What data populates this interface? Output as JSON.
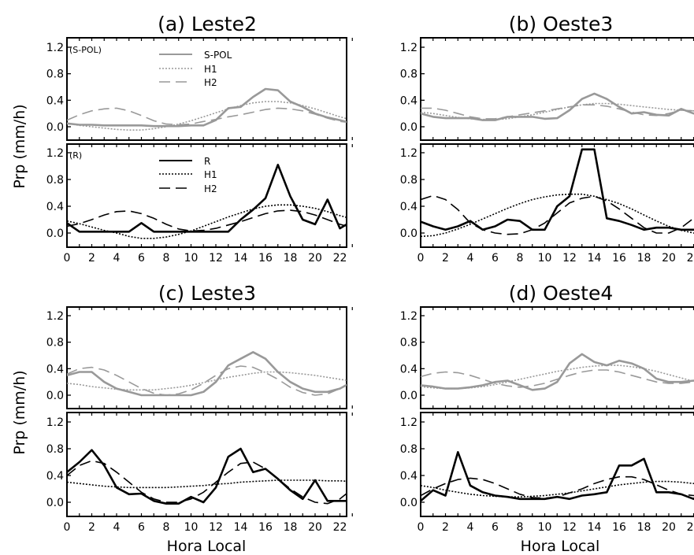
{
  "ylabel": "Prp (mm/h)",
  "xlabel": "Hora Local",
  "x_ticks": [
    "0",
    "2",
    "4",
    "6",
    "8",
    "10",
    "12",
    "14",
    "16",
    "18",
    "20",
    "22"
  ],
  "y_ticks": [
    "0.0",
    "0.4",
    "0.8",
    "1.2"
  ],
  "legends": {
    "top": {
      "tag": "(S-POL)",
      "items": [
        "S-POL",
        "H1",
        "H2"
      ]
    },
    "bottom": {
      "tag": "(R)",
      "items": [
        "R",
        "H1",
        "H2"
      ]
    }
  },
  "colors": {
    "spol": "#999999",
    "rain": "#000000"
  },
  "chart_data": [
    {
      "type": "line",
      "title": "(a) Leste2",
      "x": [
        0,
        1,
        2,
        3,
        4,
        5,
        6,
        7,
        8,
        9,
        10,
        11,
        12,
        13,
        14,
        15,
        16,
        17,
        18,
        19,
        20,
        21,
        22,
        23
      ],
      "ylim": [
        -0.1,
        1.2
      ],
      "top": {
        "series": [
          {
            "name": "S-POL",
            "values": [
              0.05,
              0.03,
              0.03,
              0.02,
              0.02,
              0.02,
              0.02,
              0.01,
              0.01,
              0.01,
              0.02,
              0.02,
              0.1,
              0.28,
              0.3,
              0.45,
              0.57,
              0.55,
              0.38,
              0.3,
              0.2,
              0.14,
              0.1,
              0.05
            ]
          },
          {
            "name": "H1",
            "values": [
              0.05,
              0.02,
              0.0,
              -0.02,
              -0.04,
              -0.05,
              -0.05,
              -0.03,
              0.0,
              0.04,
              0.09,
              0.15,
              0.21,
              0.27,
              0.32,
              0.36,
              0.38,
              0.38,
              0.36,
              0.32,
              0.27,
              0.21,
              0.15,
              0.1
            ]
          },
          {
            "name": "H2",
            "values": [
              0.1,
              0.18,
              0.24,
              0.27,
              0.28,
              0.24,
              0.17,
              0.09,
              0.04,
              0.03,
              0.04,
              0.08,
              0.11,
              0.15,
              0.18,
              0.22,
              0.26,
              0.28,
              0.27,
              0.24,
              0.19,
              0.13,
              0.08,
              0.06
            ]
          }
        ]
      },
      "bottom": {
        "series": [
          {
            "name": "R",
            "values": [
              0.15,
              0.02,
              0.02,
              0.02,
              0.02,
              0.02,
              0.15,
              0.02,
              0.02,
              0.02,
              0.02,
              0.02,
              0.02,
              0.02,
              0.2,
              0.35,
              0.52,
              1.02,
              0.55,
              0.2,
              0.13,
              0.5,
              0.07,
              0.18
            ]
          },
          {
            "name": "H1",
            "values": [
              0.18,
              0.14,
              0.09,
              0.04,
              0.0,
              -0.05,
              -0.08,
              -0.08,
              -0.06,
              -0.02,
              0.03,
              0.1,
              0.17,
              0.24,
              0.3,
              0.36,
              0.4,
              0.42,
              0.42,
              0.4,
              0.37,
              0.32,
              0.26,
              0.21
            ]
          },
          {
            "name": "H2",
            "values": [
              0.1,
              0.14,
              0.2,
              0.27,
              0.32,
              0.33,
              0.29,
              0.22,
              0.13,
              0.06,
              0.03,
              0.04,
              0.07,
              0.12,
              0.17,
              0.23,
              0.29,
              0.33,
              0.34,
              0.32,
              0.27,
              0.2,
              0.13,
              0.08
            ]
          }
        ]
      }
    },
    {
      "type": "line",
      "title": "(b) Oeste3",
      "x": [
        0,
        1,
        2,
        3,
        4,
        5,
        6,
        7,
        8,
        9,
        10,
        11,
        12,
        13,
        14,
        15,
        16,
        17,
        18,
        19,
        20,
        21,
        22,
        23
      ],
      "ylim": [
        -0.1,
        1.2
      ],
      "top": {
        "series": [
          {
            "name": "S-POL",
            "values": [
              0.2,
              0.15,
              0.13,
              0.13,
              0.13,
              0.1,
              0.1,
              0.15,
              0.15,
              0.15,
              0.12,
              0.13,
              0.25,
              0.42,
              0.5,
              0.42,
              0.3,
              0.2,
              0.22,
              0.18,
              0.17,
              0.27,
              0.2,
              0.2
            ]
          },
          {
            "name": "H1",
            "values": [
              0.22,
              0.2,
              0.17,
              0.14,
              0.12,
              0.11,
              0.11,
              0.12,
              0.15,
              0.18,
              0.22,
              0.26,
              0.3,
              0.33,
              0.35,
              0.35,
              0.34,
              0.32,
              0.3,
              0.28,
              0.26,
              0.25,
              0.24,
              0.23
            ]
          },
          {
            "name": "H2",
            "values": [
              0.28,
              0.28,
              0.25,
              0.2,
              0.15,
              0.12,
              0.12,
              0.15,
              0.18,
              0.21,
              0.24,
              0.27,
              0.3,
              0.33,
              0.33,
              0.31,
              0.27,
              0.22,
              0.18,
              0.17,
              0.2,
              0.25,
              0.24,
              0.2
            ]
          }
        ]
      },
      "bottom": {
        "series": [
          {
            "name": "R",
            "values": [
              0.17,
              0.1,
              0.05,
              0.1,
              0.18,
              0.05,
              0.1,
              0.2,
              0.18,
              0.05,
              0.05,
              0.4,
              0.55,
              1.25,
              1.25,
              0.22,
              0.18,
              0.12,
              0.05,
              0.08,
              0.08,
              0.05,
              0.05,
              0.03
            ]
          },
          {
            "name": "H1",
            "values": [
              -0.05,
              -0.04,
              0.0,
              0.06,
              0.13,
              0.21,
              0.29,
              0.37,
              0.44,
              0.5,
              0.54,
              0.57,
              0.58,
              0.58,
              0.55,
              0.5,
              0.44,
              0.36,
              0.27,
              0.18,
              0.1,
              0.04,
              0.0,
              -0.03
            ]
          },
          {
            "name": "H2",
            "values": [
              0.5,
              0.56,
              0.5,
              0.35,
              0.15,
              0.05,
              0.0,
              -0.02,
              -0.01,
              0.05,
              0.15,
              0.3,
              0.45,
              0.52,
              0.55,
              0.48,
              0.36,
              0.22,
              0.08,
              0.0,
              0.0,
              0.08,
              0.22,
              0.34
            ]
          }
        ]
      }
    },
    {
      "type": "line",
      "title": "(c) Leste3",
      "x": [
        0,
        1,
        2,
        3,
        4,
        5,
        6,
        7,
        8,
        9,
        10,
        11,
        12,
        13,
        14,
        15,
        16,
        17,
        18,
        19,
        20,
        21,
        22,
        23
      ],
      "ylim": [
        -0.1,
        1.2
      ],
      "top": {
        "series": [
          {
            "name": "S-POL",
            "values": [
              0.3,
              0.35,
              0.35,
              0.2,
              0.1,
              0.05,
              0.0,
              0.0,
              0.0,
              0.0,
              0.0,
              0.05,
              0.2,
              0.45,
              0.55,
              0.65,
              0.55,
              0.35,
              0.2,
              0.1,
              0.05,
              0.05,
              0.1,
              0.2
            ]
          },
          {
            "name": "H1",
            "values": [
              0.18,
              0.16,
              0.13,
              0.11,
              0.09,
              0.08,
              0.08,
              0.08,
              0.1,
              0.12,
              0.15,
              0.19,
              0.23,
              0.27,
              0.3,
              0.33,
              0.35,
              0.35,
              0.34,
              0.32,
              0.3,
              0.27,
              0.24,
              0.21
            ]
          },
          {
            "name": "H2",
            "values": [
              0.32,
              0.4,
              0.42,
              0.38,
              0.3,
              0.2,
              0.1,
              0.03,
              0.0,
              0.02,
              0.08,
              0.18,
              0.3,
              0.4,
              0.44,
              0.42,
              0.34,
              0.24,
              0.12,
              0.04,
              0.0,
              0.02,
              0.1,
              0.22
            ]
          }
        ]
      },
      "bottom": {
        "series": [
          {
            "name": "R",
            "values": [
              0.45,
              0.6,
              0.78,
              0.55,
              0.22,
              0.12,
              0.13,
              0.02,
              -0.02,
              -0.02,
              0.08,
              0.0,
              0.22,
              0.68,
              0.8,
              0.45,
              0.5,
              0.35,
              0.18,
              0.05,
              0.33,
              0.02,
              0.02,
              0.02
            ]
          },
          {
            "name": "H1",
            "values": [
              0.3,
              0.28,
              0.26,
              0.24,
              0.23,
              0.22,
              0.22,
              0.22,
              0.22,
              0.23,
              0.24,
              0.25,
              0.27,
              0.28,
              0.3,
              0.31,
              0.32,
              0.33,
              0.33,
              0.33,
              0.33,
              0.32,
              0.32,
              0.31
            ]
          },
          {
            "name": "H2",
            "values": [
              0.4,
              0.55,
              0.62,
              0.58,
              0.45,
              0.3,
              0.15,
              0.05,
              0.0,
              0.0,
              0.05,
              0.15,
              0.3,
              0.45,
              0.58,
              0.6,
              0.5,
              0.35,
              0.2,
              0.08,
              0.0,
              -0.02,
              0.05,
              0.2
            ]
          }
        ]
      }
    },
    {
      "type": "line",
      "title": "(d) Oeste4",
      "x": [
        0,
        1,
        2,
        3,
        4,
        5,
        6,
        7,
        8,
        9,
        10,
        11,
        12,
        13,
        14,
        15,
        16,
        17,
        18,
        19,
        20,
        21,
        22,
        23
      ],
      "ylim": [
        -0.1,
        1.2
      ],
      "top": {
        "series": [
          {
            "name": "S-POL",
            "values": [
              0.15,
              0.13,
              0.1,
              0.1,
              0.12,
              0.15,
              0.2,
              0.22,
              0.15,
              0.08,
              0.1,
              0.2,
              0.48,
              0.62,
              0.5,
              0.45,
              0.52,
              0.48,
              0.4,
              0.25,
              0.2,
              0.2,
              0.22,
              0.2
            ]
          },
          {
            "name": "H1",
            "values": [
              0.13,
              0.11,
              0.1,
              0.1,
              0.11,
              0.13,
              0.16,
              0.2,
              0.24,
              0.28,
              0.32,
              0.36,
              0.39,
              0.42,
              0.44,
              0.45,
              0.45,
              0.43,
              0.4,
              0.36,
              0.31,
              0.26,
              0.21,
              0.17
            ]
          },
          {
            "name": "H2",
            "values": [
              0.28,
              0.33,
              0.35,
              0.34,
              0.3,
              0.24,
              0.18,
              0.14,
              0.12,
              0.14,
              0.18,
              0.24,
              0.3,
              0.35,
              0.38,
              0.38,
              0.35,
              0.3,
              0.25,
              0.2,
              0.18,
              0.18,
              0.2,
              0.24
            ]
          }
        ]
      },
      "bottom": {
        "series": [
          {
            "name": "R",
            "values": [
              0.02,
              0.18,
              0.1,
              0.75,
              0.25,
              0.15,
              0.1,
              0.08,
              0.05,
              0.05,
              0.05,
              0.08,
              0.05,
              0.1,
              0.12,
              0.15,
              0.55,
              0.55,
              0.65,
              0.15,
              0.15,
              0.12,
              0.05,
              0.22
            ]
          },
          {
            "name": "H1",
            "values": [
              0.25,
              0.22,
              0.18,
              0.15,
              0.12,
              0.1,
              0.09,
              0.08,
              0.08,
              0.09,
              0.1,
              0.12,
              0.14,
              0.17,
              0.2,
              0.23,
              0.26,
              0.28,
              0.3,
              0.31,
              0.31,
              0.3,
              0.28,
              0.26
            ]
          },
          {
            "name": "H2",
            "values": [
              0.1,
              0.2,
              0.28,
              0.34,
              0.36,
              0.34,
              0.28,
              0.2,
              0.12,
              0.07,
              0.06,
              0.08,
              0.14,
              0.2,
              0.28,
              0.34,
              0.38,
              0.38,
              0.34,
              0.26,
              0.18,
              0.12,
              0.1,
              0.12
            ]
          }
        ]
      }
    }
  ]
}
